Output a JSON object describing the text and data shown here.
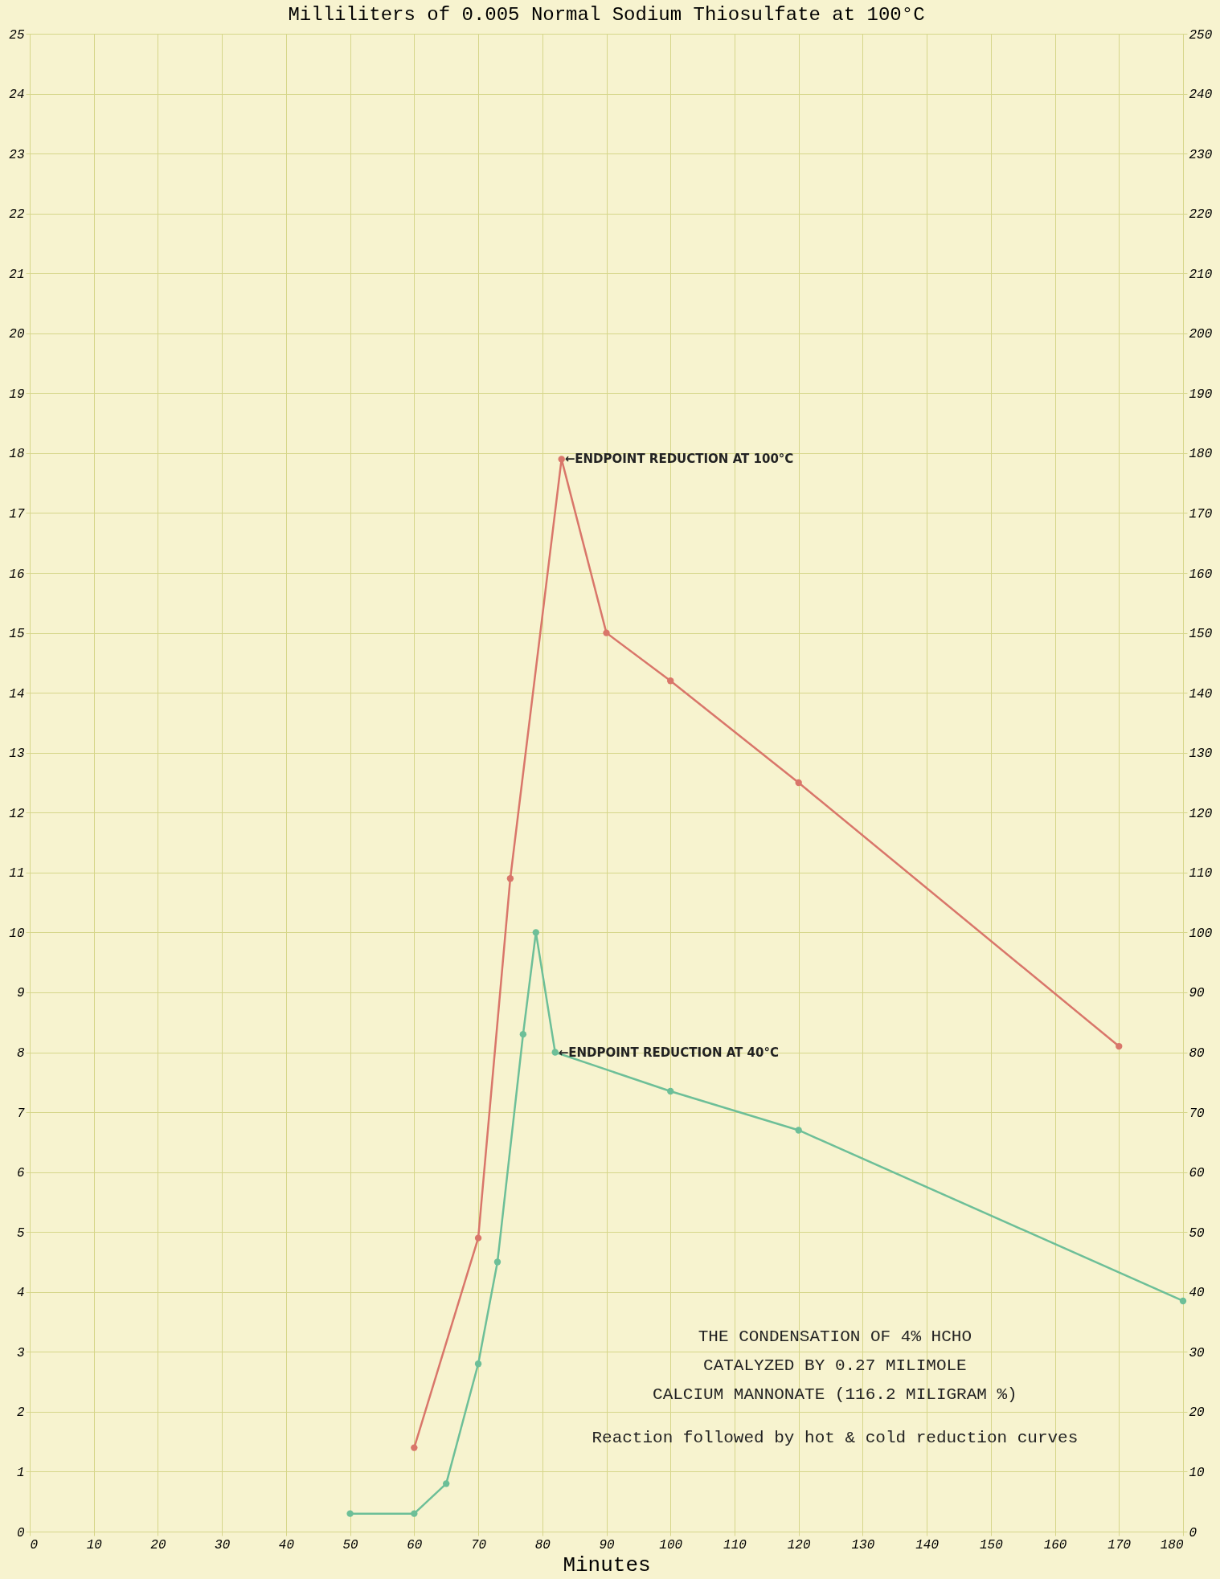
{
  "chart_data": {
    "type": "line",
    "title": "Milliliters of 0.005 Normal Sodium Thiosulfate at 100°C",
    "xlabel": "Minutes",
    "xlim": [
      0,
      180
    ],
    "xticks": [
      0,
      10,
      20,
      30,
      40,
      50,
      60,
      70,
      80,
      90,
      100,
      110,
      120,
      130,
      140,
      150,
      160,
      170,
      180
    ],
    "ylim": [
      0,
      25
    ],
    "yticks": [
      0,
      1,
      2,
      3,
      4,
      5,
      6,
      7,
      8,
      9,
      10,
      11,
      12,
      13,
      14,
      15,
      16,
      17,
      18,
      19,
      20,
      21,
      22,
      23,
      24,
      25
    ],
    "y2lim": [
      0,
      250
    ],
    "y2ticks": [
      0,
      10,
      20,
      30,
      40,
      50,
      60,
      70,
      80,
      90,
      100,
      110,
      120,
      130,
      140,
      150,
      160,
      170,
      180,
      190,
      200,
      210,
      220,
      230,
      240,
      250
    ],
    "grid": true,
    "marker": "circle",
    "line_style": "solid",
    "series": [
      {
        "color": "#d9766a",
        "x": [
          60,
          70,
          75,
          83,
          90,
          100,
          120,
          170
        ],
        "values": [
          1.4,
          4.9,
          10.9,
          17.9,
          15.0,
          14.2,
          12.5,
          8.1
        ]
      },
      {
        "color": "#6dbf98",
        "x": [
          50,
          60,
          65,
          70,
          73,
          77,
          79,
          82,
          100,
          120,
          180
        ],
        "values": [
          0.3,
          0.3,
          0.8,
          2.8,
          4.5,
          8.3,
          10.0,
          8.0,
          7.35,
          6.7,
          3.85
        ]
      }
    ],
    "annotations": [
      {
        "text": "←ENDPOINT REDUCTION AT 100°C",
        "x": 83,
        "y": 17.9
      },
      {
        "text": "←ENDPOINT REDUCTION AT 40°C",
        "x": 82,
        "y": 8.0
      },
      "THE CONDENSATION OF 4% HCHO",
      "CATALYZED BY 0.27 MILIMOLE",
      "CALCIUM MANNONATE (116.2 MILIGRAM %)",
      "Reaction followed by hot & cold reduction curves"
    ]
  }
}
